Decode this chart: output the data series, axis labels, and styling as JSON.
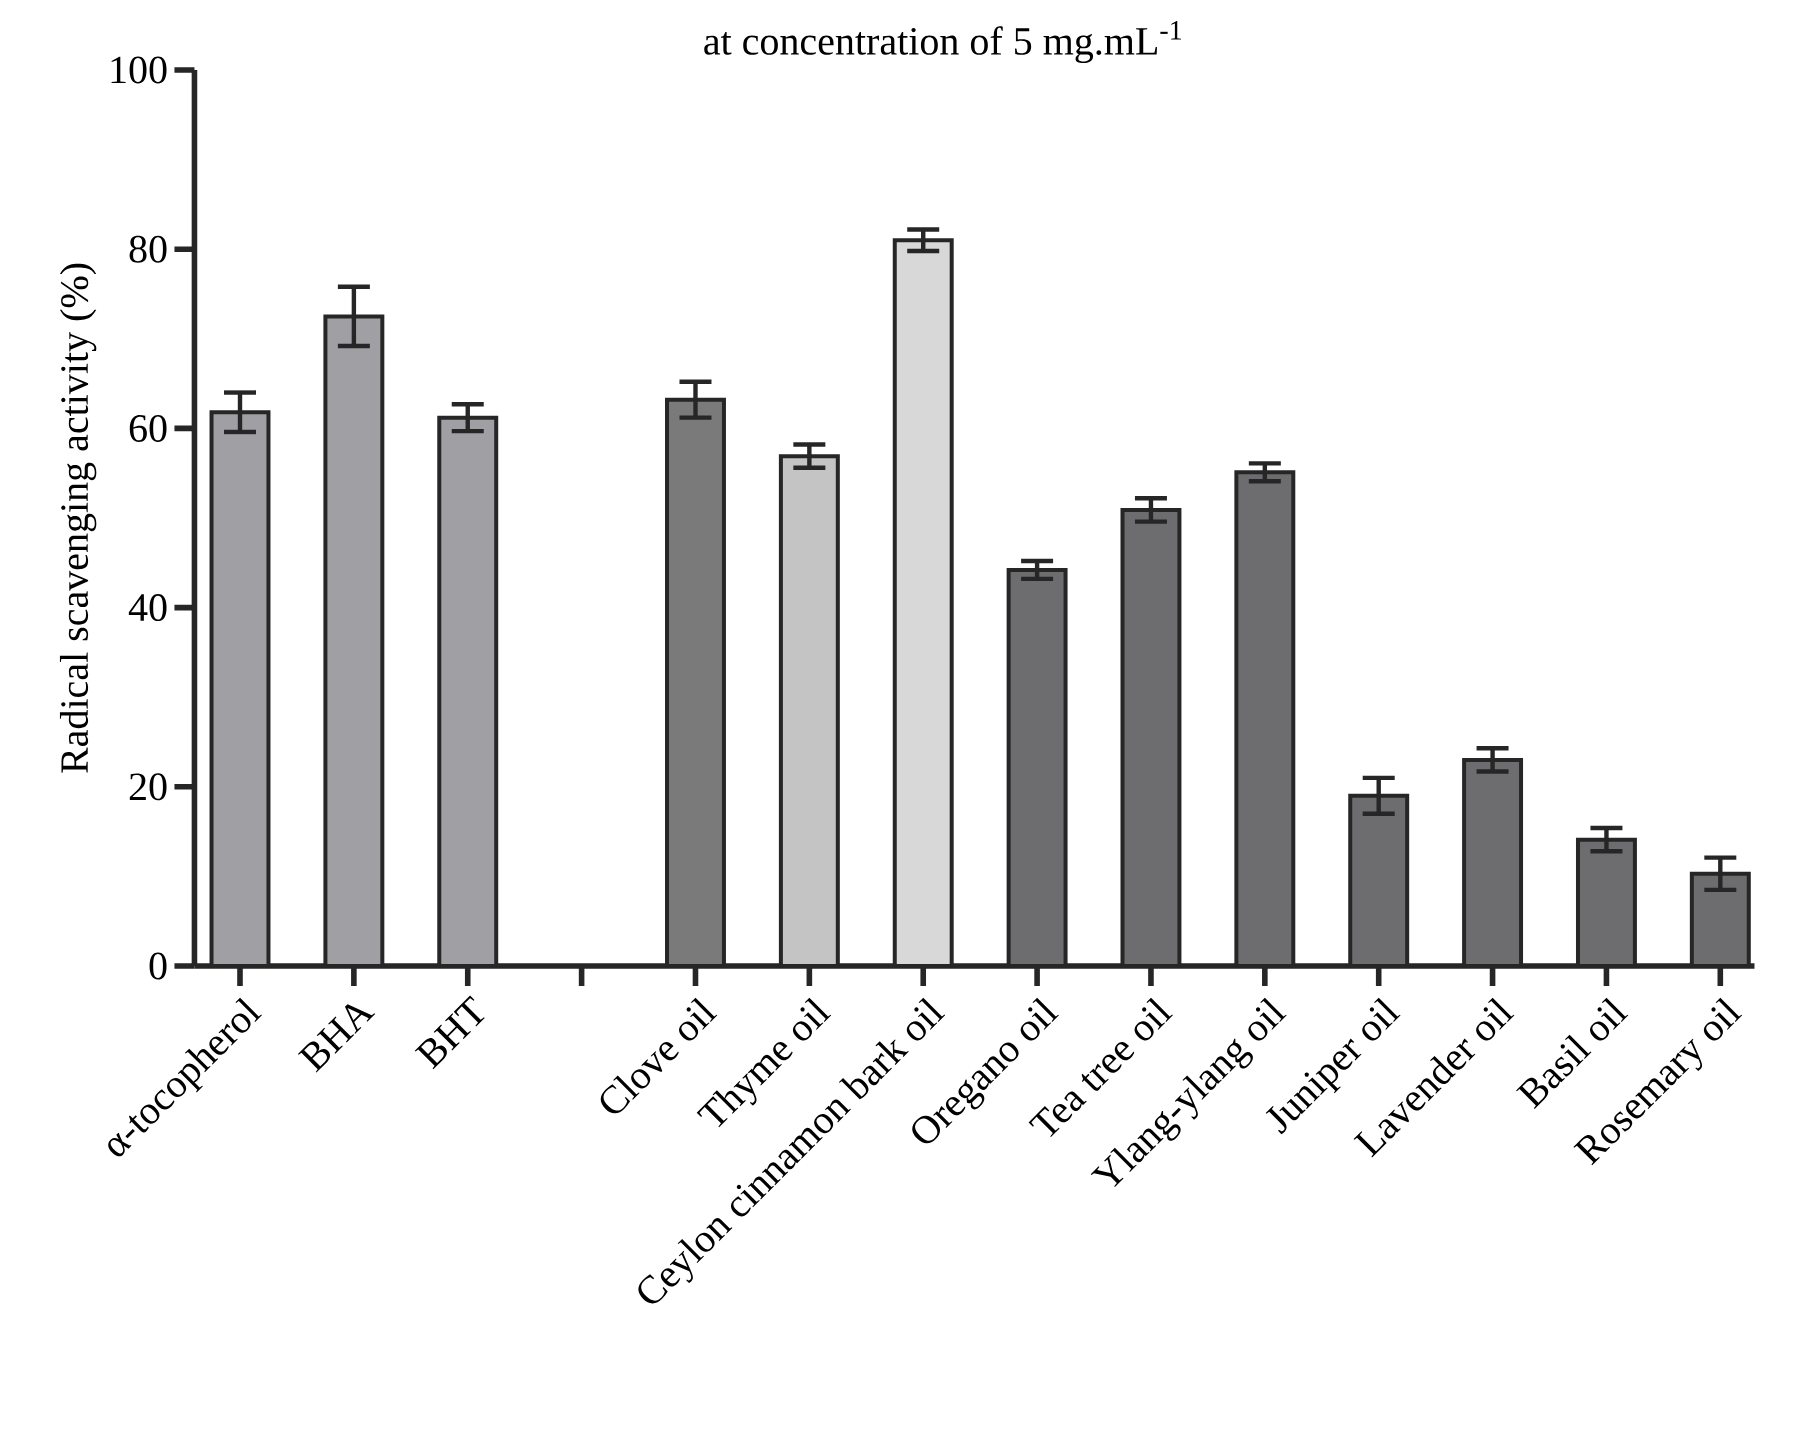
{
  "chart_data": {
    "type": "bar",
    "title": "at concentration of 5 mg.mL$^{-1}$",
    "ylabel": "Radical scavenging activity (%)",
    "categories": [
      "α-tocopherol",
      "BHA",
      "BHT",
      null,
      "Clove oil",
      "Thyme oil",
      "Ceylon cinnamon bark oil",
      "Oregano oil",
      "Tea tree oil",
      "Ylang-ylang oil",
      "Juniper oil",
      "Lavender oil",
      "Basil oil",
      "Rosemary oil"
    ],
    "values": [
      61.8,
      72.5,
      61.2,
      null,
      63.2,
      56.9,
      81.0,
      44.2,
      50.9,
      55.1,
      19.0,
      23.0,
      14.1,
      10.3
    ],
    "errors": [
      2.2,
      3.3,
      1.5,
      null,
      2.0,
      1.3,
      1.2,
      1.0,
      1.3,
      1.0,
      2.0,
      1.3,
      1.3,
      1.8
    ],
    "colors": [
      "#a0a0a4",
      "#a0a0a4",
      "#a0a0a4",
      null,
      "#7a7a7a",
      "#c4c4c4",
      "#d8d8d8",
      "#6d6d70",
      "#6d6d70",
      "#6d6d70",
      "#6d6d70",
      "#6d6d70",
      "#6d6d70",
      "#6d6d70"
    ],
    "ylim": [
      0,
      100
    ],
    "yticks": [
      0,
      20,
      40,
      60,
      80,
      100
    ]
  }
}
